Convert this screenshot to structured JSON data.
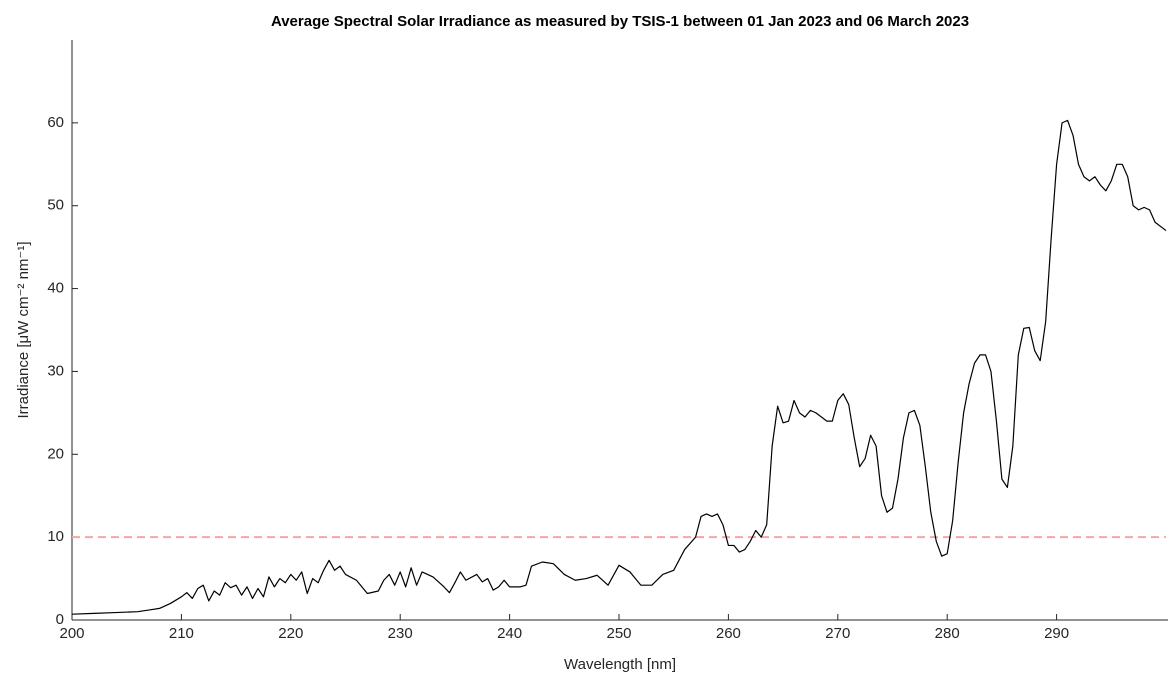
{
  "chart_data": {
    "type": "line",
    "title": "Average Spectral Solar Irradiance as measured by TSIS-1 between 01 Jan 2023 and 06 March 2023",
    "x_label": "Wavelength [nm]",
    "y_label": "Irradiance [μW cm⁻² nm⁻¹]",
    "xlim": [
      200,
      300
    ],
    "ylim": [
      0,
      70
    ],
    "xticks": [
      200,
      210,
      220,
      230,
      240,
      250,
      260,
      270,
      280,
      290
    ],
    "yticks": [
      0,
      10,
      20,
      30,
      40,
      50,
      60
    ],
    "reference_line": {
      "value": 10,
      "color": "#f4a6a6"
    },
    "x": [
      200,
      202,
      204,
      206,
      207,
      208,
      209,
      210,
      210.5,
      211,
      211.5,
      212,
      212.5,
      213,
      213.5,
      214,
      214.5,
      215,
      215.5,
      216,
      216.5,
      217,
      217.5,
      218,
      218.5,
      219,
      219.5,
      220,
      220.5,
      221,
      221.5,
      222,
      222.5,
      223,
      223.5,
      224,
      224.5,
      225,
      226,
      227,
      228,
      228.5,
      229,
      229.5,
      230,
      230.5,
      231,
      231.5,
      232,
      233,
      234,
      234.5,
      235,
      235.5,
      236,
      237,
      237.5,
      238,
      238.5,
      239,
      239.5,
      240,
      241,
      241.5,
      242,
      243,
      244,
      245,
      246,
      247,
      248,
      249,
      250,
      251,
      252,
      253,
      254,
      255,
      256,
      257,
      257.5,
      258,
      258.5,
      259,
      259.5,
      260,
      260.5,
      261,
      261.5,
      262,
      262.5,
      263,
      263.5,
      264,
      264.5,
      265,
      265.5,
      266,
      266.5,
      267,
      267.5,
      268,
      269,
      269.5,
      270,
      270.5,
      271,
      271.5,
      272,
      272.5,
      273,
      273.5,
      274,
      274.5,
      275,
      275.5,
      276,
      276.5,
      277,
      277.5,
      278,
      278.5,
      279,
      279.5,
      280,
      280.5,
      281,
      281.5,
      282,
      282.5,
      283,
      283.5,
      284,
      284.5,
      285,
      285.5,
      286,
      286.5,
      287,
      287.5,
      288,
      288.5,
      289,
      289.5,
      290,
      290.5,
      291,
      291.5,
      292,
      292.5,
      293,
      293.5,
      294,
      294.5,
      295,
      295.5,
      296,
      296.5,
      297,
      297.5,
      298,
      298.5,
      299,
      300
    ],
    "series": [
      {
        "name": "Irradiance",
        "color": "#000000",
        "values": [
          0.7,
          0.8,
          0.9,
          1.0,
          1.2,
          1.4,
          2.0,
          2.8,
          3.3,
          2.6,
          3.8,
          4.2,
          2.3,
          3.5,
          3.0,
          4.5,
          3.9,
          4.2,
          3.0,
          4.0,
          2.6,
          3.8,
          2.8,
          5.2,
          4.0,
          5.0,
          4.5,
          5.5,
          4.8,
          5.8,
          3.2,
          5.0,
          4.5,
          6.0,
          7.2,
          6.0,
          6.5,
          5.5,
          4.8,
          3.2,
          3.5,
          4.8,
          5.5,
          4.2,
          5.8,
          4.0,
          6.3,
          4.2,
          5.8,
          5.2,
          4.0,
          3.3,
          4.5,
          5.8,
          4.8,
          5.5,
          4.6,
          5.0,
          3.6,
          4.0,
          4.8,
          4.0,
          4.0,
          4.2,
          6.5,
          7.0,
          6.8,
          5.5,
          4.8,
          5.0,
          5.4,
          4.2,
          6.6,
          5.8,
          4.2,
          4.2,
          5.5,
          6.0,
          8.5,
          10.0,
          12.5,
          12.8,
          12.5,
          12.8,
          11.5,
          9.0,
          9.0,
          8.2,
          8.5,
          9.5,
          10.8,
          10.0,
          11.5,
          21.0,
          25.8,
          23.8,
          24.0,
          26.5,
          25.0,
          24.5,
          25.3,
          25.0,
          24.0,
          24.0,
          26.5,
          27.3,
          26.0,
          22.0,
          18.5,
          19.5,
          22.3,
          21.0,
          15.0,
          13.0,
          13.5,
          17.0,
          22.0,
          25.0,
          25.3,
          23.5,
          18.5,
          13.0,
          9.5,
          7.7,
          8.0,
          12.0,
          19.0,
          25.0,
          28.5,
          31.0,
          32.0,
          32.0,
          30.0,
          24.0,
          17.0,
          16.0,
          21.0,
          32.0,
          35.2,
          35.3,
          32.5,
          31.3,
          36.0,
          46.0,
          55.0,
          60.0,
          60.3,
          58.5,
          55.0,
          53.5,
          53.0,
          53.5,
          52.5,
          51.8,
          53.0,
          55.0,
          55.0,
          53.5,
          50.0,
          49.5,
          49.8,
          49.5,
          48.0,
          47.0
        ]
      }
    ]
  }
}
